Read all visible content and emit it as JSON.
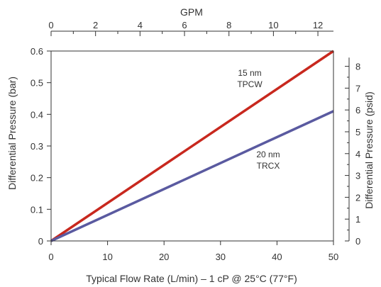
{
  "chart_data": {
    "type": "line",
    "xlabel": "Typical Flow Rate (L/min) – 1 cP @ 25°C (77°F)",
    "ylabel": "Differential Pressure (bar)",
    "x2label": "GPM",
    "y2label": "Differential Pressure (psid)",
    "xlim": [
      0,
      50
    ],
    "ylim": [
      0,
      0.6
    ],
    "x2lim": [
      0,
      12.7
    ],
    "y2lim": [
      0,
      8.7
    ],
    "x_ticks": [
      "0",
      "10",
      "20",
      "30",
      "40",
      "50"
    ],
    "y_ticks": [
      "0",
      "0.1",
      "0.2",
      "0.3",
      "0.4",
      "0.5",
      "0.6"
    ],
    "x2_ticks": [
      "0",
      "2",
      "4",
      "6",
      "8",
      "10",
      "12"
    ],
    "y2_ticks": [
      "0",
      "1",
      "2",
      "3",
      "4",
      "5",
      "6",
      "7",
      "8"
    ],
    "grid": false,
    "series": [
      {
        "name_lines": [
          "15 nm",
          "TPCW"
        ],
        "color": "#c8281e",
        "x": [
          0,
          50
        ],
        "y": [
          0,
          0.6
        ]
      },
      {
        "name_lines": [
          "20 nm",
          "TRCX"
        ],
        "color": "#5a5aa0",
        "x": [
          0,
          50
        ],
        "y": [
          0,
          0.41
        ]
      }
    ]
  }
}
